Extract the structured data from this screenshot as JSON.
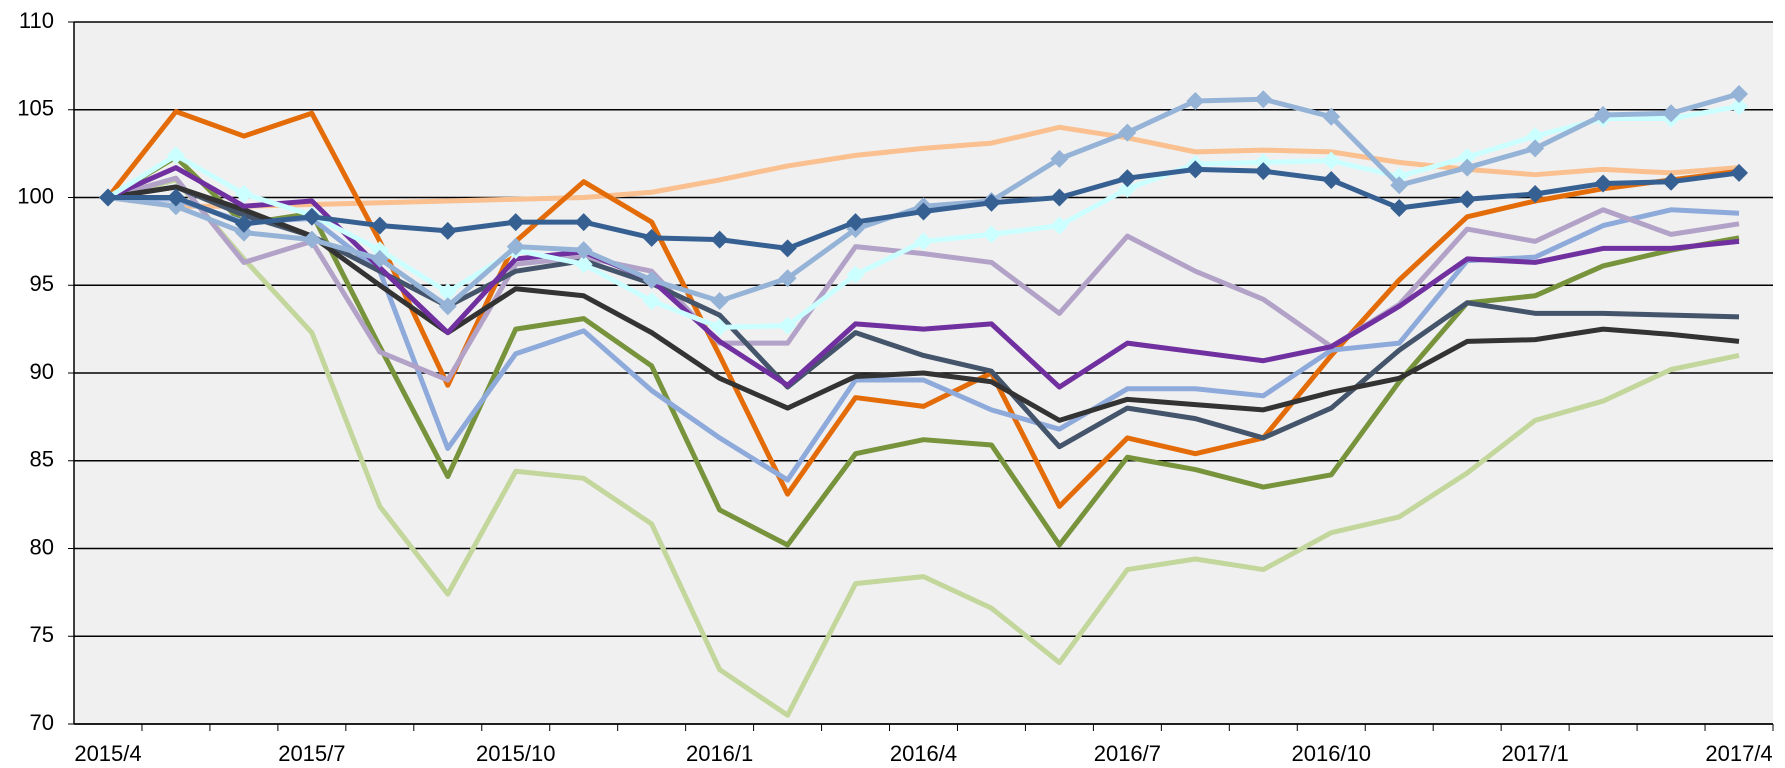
{
  "chart_data": {
    "type": "line",
    "categories": [
      "2015/4",
      null,
      null,
      "2015/7",
      null,
      null,
      "2015/10",
      null,
      null,
      "2016/1",
      null,
      null,
      "2016/4",
      null,
      null,
      "2016/7",
      null,
      null,
      "2016/10",
      null,
      null,
      "2017/1",
      null,
      null,
      "2017/4"
    ],
    "ylim": [
      70,
      110
    ],
    "yticks": [
      70,
      75,
      80,
      85,
      90,
      95,
      100,
      105,
      110
    ],
    "grid": true,
    "series": [
      {
        "color": "#fac090",
        "marker": "none",
        "values": [
          100,
          99.5,
          99.5,
          99.6,
          99.7,
          99.8,
          99.9,
          100,
          100.3,
          101,
          101.8,
          102.4,
          102.8,
          103.1,
          104,
          103.4,
          102.6,
          102.7,
          102.6,
          102,
          101.6,
          101.3,
          101.6,
          101.4,
          101.7
        ]
      },
      {
        "color": "#c3d69b",
        "marker": "none",
        "values": [
          100,
          101,
          96.5,
          92.3,
          82.4,
          77.4,
          84.4,
          84,
          81.4,
          73.1,
          70.5,
          78,
          78.4,
          76.6,
          73.5,
          78.8,
          79.4,
          78.8,
          80.9,
          81.8,
          84.3,
          87.3,
          88.4,
          90.2,
          91
        ]
      },
      {
        "color": "#e36c09",
        "marker": "none",
        "values": [
          100,
          104.9,
          103.5,
          104.8,
          97.5,
          89.3,
          97.5,
          100.9,
          98.6,
          91,
          83.1,
          88.6,
          88.1,
          90,
          82.4,
          86.3,
          85.4,
          86.3,
          91,
          95.3,
          98.9,
          99.8,
          100.5,
          101,
          101.5
        ]
      },
      {
        "color": "#77933c",
        "marker": "none",
        "values": [
          100,
          102.3,
          98.5,
          99.1,
          91.5,
          84.1,
          92.5,
          93.1,
          90.4,
          82.2,
          80.2,
          85.4,
          86.2,
          85.9,
          80.2,
          85.2,
          84.5,
          83.5,
          84.2,
          89.5,
          94,
          94.4,
          96.1,
          97,
          97.7
        ]
      },
      {
        "color": "#8eaadb",
        "marker": "none",
        "values": [
          100,
          99.9,
          98.6,
          98.8,
          95.8,
          85.7,
          91.1,
          92.4,
          89,
          86.3,
          83.9,
          89.6,
          89.6,
          87.9,
          86.8,
          89.1,
          89.1,
          88.7,
          91.3,
          91.7,
          96.4,
          96.6,
          98.4,
          99.3,
          99.1
        ]
      },
      {
        "color": "#b3a2c7",
        "marker": "none",
        "values": [
          100,
          101.1,
          96.3,
          97.5,
          91.2,
          89.6,
          96.2,
          96.6,
          95.8,
          91.7,
          91.7,
          97.2,
          96.8,
          96.3,
          93.4,
          97.8,
          95.8,
          94.2,
          91.5,
          93.9,
          98.2,
          97.5,
          99.3,
          97.9,
          98.5
        ]
      },
      {
        "color": "#44546a",
        "marker": "none",
        "values": [
          100,
          100.6,
          99,
          97.8,
          95.8,
          93.8,
          95.8,
          96.4,
          95.1,
          93.3,
          89.2,
          92.3,
          91,
          90.1,
          85.8,
          88,
          87.4,
          86.3,
          88,
          91.3,
          94,
          93.4,
          93.4,
          93.3,
          93.2
        ]
      },
      {
        "color": "#333333",
        "marker": "none",
        "values": [
          100,
          100.6,
          99.3,
          97.8,
          95,
          92.3,
          94.8,
          94.4,
          92.3,
          89.7,
          88,
          89.8,
          90,
          89.5,
          87.3,
          88.5,
          88.2,
          87.9,
          88.9,
          89.7,
          91.8,
          91.9,
          92.5,
          92.2,
          91.8
        ]
      },
      {
        "color": "#7030a0",
        "marker": "none",
        "values": [
          100,
          101.7,
          99.5,
          99.8,
          96,
          92.3,
          96.5,
          96.9,
          95.3,
          91.8,
          89.3,
          92.8,
          92.5,
          92.8,
          89.2,
          91.7,
          91.2,
          90.7,
          91.5,
          93.8,
          96.5,
          96.3,
          97.1,
          97.1,
          97.5
        ]
      },
      {
        "color": "#ccffff",
        "marker": "diamond",
        "values": [
          100,
          102.4,
          100.2,
          99,
          97,
          94.6,
          97,
          96.2,
          94.1,
          92.6,
          92.7,
          95.6,
          97.5,
          97.9,
          98.4,
          100.5,
          101.9,
          102,
          102.1,
          101.2,
          102.3,
          103.5,
          104.5,
          104.5,
          105.2
        ]
      },
      {
        "color": "#95b3d7",
        "marker": "diamond",
        "values": [
          100,
          99.5,
          98,
          97.6,
          96.5,
          93.8,
          97.2,
          97,
          95.3,
          94.1,
          95.4,
          98.2,
          99.5,
          99.8,
          102.2,
          103.7,
          105.5,
          105.6,
          104.6,
          100.7,
          101.7,
          102.8,
          104.7,
          104.8,
          105.9
        ]
      },
      {
        "color": "#376092",
        "marker": "diamond",
        "values": [
          100,
          100,
          98.5,
          98.9,
          98.4,
          98.1,
          98.6,
          98.6,
          97.7,
          97.6,
          97.1,
          98.6,
          99.2,
          99.7,
          100,
          101.1,
          101.6,
          101.5,
          101,
          99.4,
          99.9,
          100.2,
          100.8,
          100.9,
          101.4
        ]
      }
    ]
  }
}
